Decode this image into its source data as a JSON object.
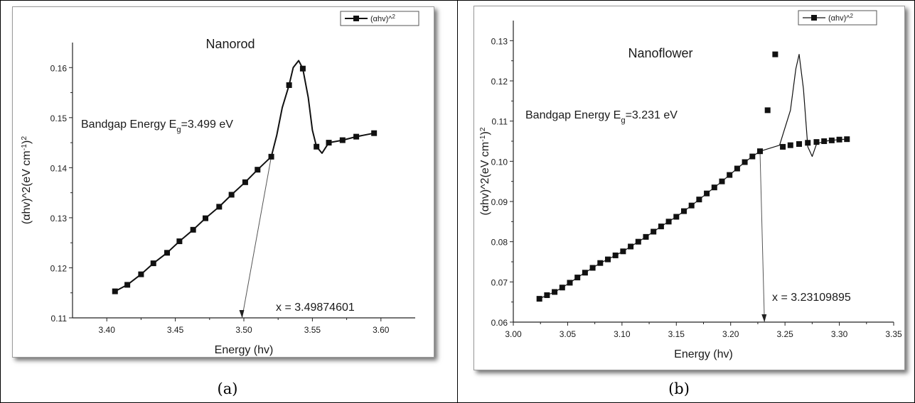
{
  "chart_data": [
    {
      "type": "line",
      "title": "Nanorod",
      "xlabel": "Energy (hv)",
      "ylabel": "(αhv)^2(eV cm-1)2",
      "xlim": [
        3.375,
        3.625
      ],
      "ylim": [
        0.11,
        0.165
      ],
      "x_ticks": [
        "3.40",
        "3.45",
        "3.50",
        "3.55",
        "3.60"
      ],
      "y_ticks": [
        "0.11",
        "0.12",
        "0.13",
        "0.14",
        "0.15",
        "0.16"
      ],
      "legend": {
        "label": "(αhv)^2",
        "position": "top-right"
      },
      "annotation_bandgap": "Bandgap Energy Eg=3.499 eV",
      "annotation_x": "x = 3.49874601",
      "intercept_x": 3.4987,
      "series": [
        {
          "x": [
            3.406,
            3.415,
            3.425,
            3.434,
            3.444,
            3.453,
            3.463,
            3.472,
            3.482,
            3.491,
            3.501,
            3.51,
            3.52,
            3.533,
            3.543,
            3.553,
            3.562,
            3.572,
            3.582,
            3.595
          ],
          "y": [
            0.1153,
            0.1166,
            0.1187,
            0.1209,
            0.123,
            0.1253,
            0.1276,
            0.1299,
            0.1322,
            0.1346,
            0.1371,
            0.1396,
            0.1422,
            0.1565,
            0.1598,
            0.1442,
            0.145,
            0.1455,
            0.1462,
            0.1469
          ]
        }
      ],
      "curve": [
        [
          3.52,
          0.1422
        ],
        [
          3.524,
          0.1465
        ],
        [
          3.528,
          0.152
        ],
        [
          3.533,
          0.1565
        ],
        [
          3.536,
          0.16
        ],
        [
          3.54,
          0.1614
        ],
        [
          3.543,
          0.1598
        ],
        [
          3.547,
          0.154
        ],
        [
          3.55,
          0.1475
        ],
        [
          3.553,
          0.1442
        ],
        [
          3.557,
          0.1429
        ],
        [
          3.562,
          0.145
        ]
      ]
    },
    {
      "type": "scatter",
      "title": "Nanoflower",
      "xlabel": "Energy (hv)",
      "ylabel": "(αhv)^2(eV cm-1)2",
      "xlim": [
        3.0,
        3.35
      ],
      "ylim": [
        0.06,
        0.135
      ],
      "x_ticks": [
        "3.00",
        "3.05",
        "3.10",
        "3.15",
        "3.20",
        "3.25",
        "3.30",
        "3.35"
      ],
      "y_ticks": [
        "0.06",
        "0.07",
        "0.08",
        "0.09",
        "0.10",
        "0.11",
        "0.12",
        "0.13"
      ],
      "legend": {
        "label": "(αhv)^2",
        "position": "top-right"
      },
      "annotation_bandgap": "Bandgap Energy Eg=3.231 eV",
      "annotation_x": "x = 3.23109895",
      "intercept_x": 3.2311,
      "series": [
        {
          "x": [
            3.024,
            3.031,
            3.038,
            3.045,
            3.052,
            3.059,
            3.066,
            3.073,
            3.08,
            3.087,
            3.094,
            3.101,
            3.108,
            3.115,
            3.122,
            3.129,
            3.136,
            3.143,
            3.15,
            3.157,
            3.164,
            3.171,
            3.178,
            3.185,
            3.192,
            3.199,
            3.206,
            3.213,
            3.22,
            3.227,
            3.234,
            3.241,
            3.248,
            3.255,
            3.263,
            3.271,
            3.279,
            3.286,
            3.293,
            3.3,
            3.307
          ],
          "y": [
            0.0658,
            0.0667,
            0.0675,
            0.0686,
            0.0698,
            0.0711,
            0.0723,
            0.0735,
            0.0747,
            0.0756,
            0.0766,
            0.0776,
            0.0788,
            0.08,
            0.0812,
            0.0825,
            0.0838,
            0.085,
            0.0862,
            0.0876,
            0.089,
            0.0905,
            0.092,
            0.0935,
            0.095,
            0.0966,
            0.0982,
            0.0998,
            0.1012,
            0.1025,
            0.1127,
            0.1266,
            0.1036,
            0.104,
            0.1043,
            0.1046,
            0.1048,
            0.105,
            0.1052,
            0.1054,
            0.1055
          ]
        }
      ],
      "curve": [
        [
          3.227,
          0.1025
        ],
        [
          3.245,
          0.104
        ],
        [
          3.255,
          0.1127
        ],
        [
          3.26,
          0.123
        ],
        [
          3.263,
          0.1266
        ],
        [
          3.267,
          0.118
        ],
        [
          3.271,
          0.1036
        ],
        [
          3.275,
          0.1012
        ],
        [
          3.279,
          0.1043
        ]
      ]
    }
  ],
  "captions": {
    "a": "(a)",
    "b": "(b)"
  }
}
